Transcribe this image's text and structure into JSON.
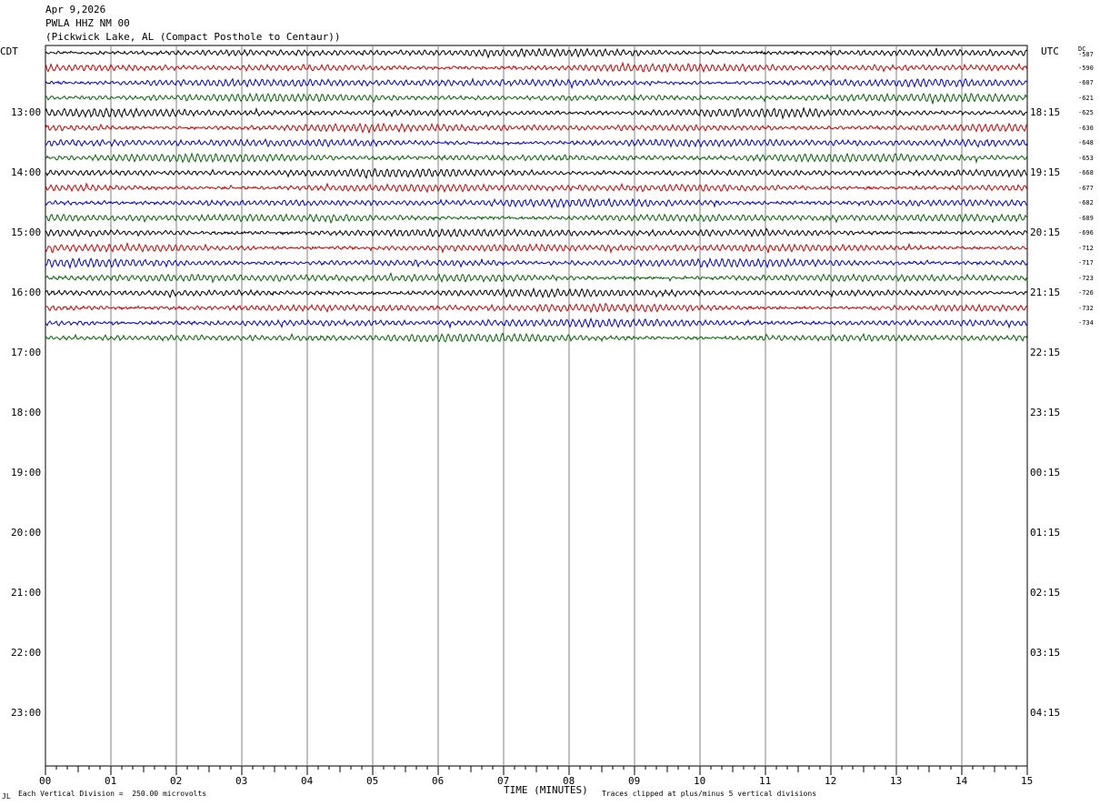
{
  "header": {
    "date": "Apr 9,2026",
    "station": "PWLA HHZ NM 00",
    "location": "(Pickwick Lake, AL (Compact Posthole to Centaur))"
  },
  "left_tz": "CDT",
  "right_tz": "UTC",
  "dc_label": "DC",
  "footer": {
    "scale": "Each Vertical Division =  250.00 microvolts",
    "xlabel": "TIME (MINUTES)",
    "clip": "Traces clipped at plus/minus 5 vertical divisions",
    "corner": "JL"
  },
  "colors": {
    "trace_cycle": [
      "#000000",
      "#cc0000",
      "#0000cc",
      "#006600"
    ],
    "grid": "#808080"
  },
  "chart_data": {
    "type": "line",
    "title": "PWLA HHZ NM 00",
    "xlabel": "TIME (MINUTES)",
    "xlim": [
      0,
      15
    ],
    "x_ticks": [
      "00",
      "01",
      "02",
      "03",
      "04",
      "05",
      "06",
      "07",
      "08",
      "09",
      "10",
      "11",
      "12",
      "13",
      "14",
      "15"
    ],
    "hour_rows": [
      {
        "local": "13:00",
        "utc": "18:15"
      },
      {
        "local": "14:00",
        "utc": "19:15"
      },
      {
        "local": "15:00",
        "utc": "20:15"
      },
      {
        "local": "16:00",
        "utc": "21:15"
      },
      {
        "local": "17:00",
        "utc": "22:15"
      },
      {
        "local": "18:00",
        "utc": "23:15"
      },
      {
        "local": "19:00",
        "utc": "00:15"
      },
      {
        "local": "20:00",
        "utc": "01:15"
      },
      {
        "local": "21:00",
        "utc": "02:15"
      },
      {
        "local": "22:00",
        "utc": "03:15"
      },
      {
        "local": "23:00",
        "utc": "04:15"
      }
    ],
    "traces_per_hour": 4,
    "trace_count": 20,
    "dc_offsets": [
      "-587",
      "-590",
      "-607",
      "-621",
      "-625",
      "-630",
      "-648",
      "-653",
      "-668",
      "-677",
      "-682",
      "-689",
      "-696",
      "-712",
      "-717",
      "-723",
      "-726",
      "-732",
      "-734"
    ]
  }
}
